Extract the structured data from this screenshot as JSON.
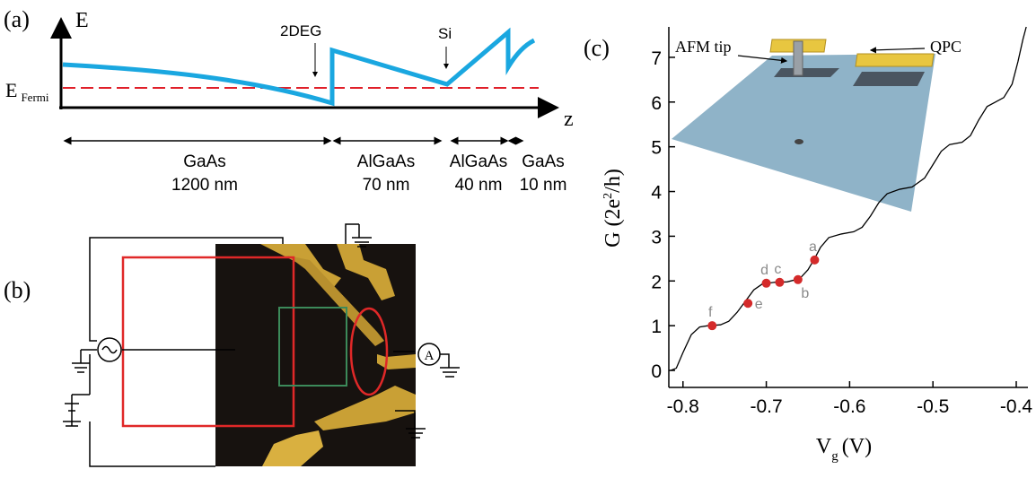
{
  "panel_a": {
    "label": "(a)",
    "energy_axis": "E",
    "fermi_main": "E",
    "fermi_sub": "Fermi",
    "position_axis": "z",
    "marker_2deg": "2DEG",
    "marker_si": "Si",
    "layers": [
      {
        "material": "GaAs",
        "thickness": "1200 nm"
      },
      {
        "material": "AlGaAs",
        "thickness": "70 nm"
      },
      {
        "material": "AlGaAs",
        "thickness": "40 nm"
      },
      {
        "material": "GaAs",
        "thickness": "10 nm"
      }
    ]
  },
  "panel_b": {
    "label": "(b)",
    "meter": "A"
  },
  "panel_c": {
    "label": "(c)",
    "inset_tip": "AFM tip",
    "inset_qpc": "QPC"
  },
  "chart_data": {
    "type": "line",
    "xlabel_main": "V",
    "xlabel_sub": "g",
    "xlabel_unit": "(V)",
    "ylabel_main": "G (2e",
    "ylabel_sup": "2",
    "ylabel_end": "/h)",
    "color": "#000000",
    "x": [
      -0.815,
      -0.808,
      -0.8,
      -0.79,
      -0.78,
      -0.77,
      -0.755,
      -0.745,
      -0.735,
      -0.725,
      -0.715,
      -0.705,
      -0.69,
      -0.675,
      -0.66,
      -0.65,
      -0.642,
      -0.635,
      -0.625,
      -0.61,
      -0.595,
      -0.585,
      -0.575,
      -0.565,
      -0.555,
      -0.54,
      -0.525,
      -0.51,
      -0.5,
      -0.49,
      -0.48,
      -0.465,
      -0.455,
      -0.445,
      -0.435,
      -0.425,
      -0.415,
      -0.405,
      -0.398,
      -0.392,
      -0.388
    ],
    "values": [
      0,
      0.05,
      0.4,
      0.8,
      0.97,
      1.0,
      1.02,
      1.1,
      1.3,
      1.55,
      1.8,
      1.93,
      1.97,
      1.98,
      2.05,
      2.25,
      2.5,
      2.75,
      2.97,
      3.05,
      3.1,
      3.2,
      3.45,
      3.75,
      3.95,
      4.05,
      4.1,
      4.3,
      4.6,
      4.9,
      5.05,
      5.1,
      5.25,
      5.6,
      5.9,
      6.0,
      6.1,
      6.4,
      6.9,
      7.4,
      7.68
    ],
    "markers": {
      "color": "#d42a2a",
      "label_color": "#8a8a8a",
      "labels": [
        "a",
        "b",
        "c",
        "d",
        "e",
        "f"
      ],
      "x": [
        -0.642,
        -0.662,
        -0.684,
        -0.7,
        -0.722,
        -0.765
      ],
      "values": [
        2.47,
        2.03,
        1.97,
        1.95,
        1.5,
        1.0
      ]
    },
    "xlim": [
      -0.817,
      -0.386
    ],
    "ylim": [
      -0.38,
      7.68
    ],
    "xticks": [
      -0.8,
      -0.7,
      -0.6,
      -0.5,
      -0.4
    ],
    "yticks": [
      0,
      1,
      2,
      3,
      4,
      5,
      6,
      7
    ]
  }
}
